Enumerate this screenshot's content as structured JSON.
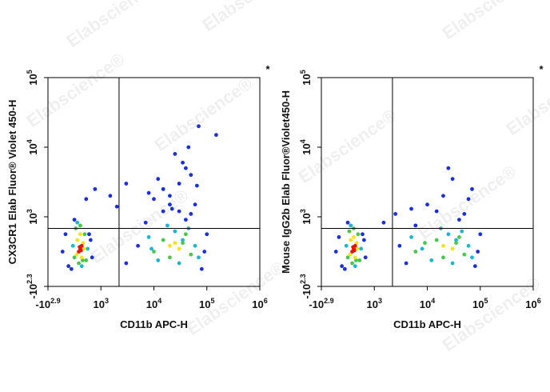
{
  "watermark": "Elabscience®",
  "chart_data": [
    {
      "type": "scatter",
      "annotation": "*",
      "xlabel": "CD11b APC-H",
      "ylabel": "CX3CR1 Elab Fluor® Violet 450-H",
      "xlim": [
        -794.3,
        1000000
      ],
      "ylim": [
        -199.5,
        100000
      ],
      "xticks": [
        {
          "value": -794.3,
          "label": "-10",
          "sup": "2.9"
        },
        {
          "value": 1000,
          "label": "10",
          "sup": "3"
        },
        {
          "value": 10000,
          "label": "10",
          "sup": "4"
        },
        {
          "value": 100000,
          "label": "10",
          "sup": "5"
        },
        {
          "value": 1000000,
          "label": "10",
          "sup": "6"
        }
      ],
      "yticks": [
        {
          "value": -199.5,
          "label": "-10",
          "sup": "2.3"
        },
        {
          "value": 1000,
          "label": "10",
          "sup": "3"
        },
        {
          "value": 10000,
          "label": "10",
          "sup": "4"
        },
        {
          "value": 100000,
          "label": "10",
          "sup": "5"
        }
      ],
      "gate_x": 2200,
      "gate_y": 800,
      "series": [
        {
          "color": "#1a2fe0",
          "x": [
            -300,
            -100,
            700,
            600,
            0,
            100,
            650,
            -200,
            5000,
            90000,
            3000,
            100000,
            7000,
            80000,
            15000,
            40000,
            50000,
            20000,
            30000,
            40000,
            25000,
            50000,
            15000,
            35000,
            60000,
            10000,
            45000,
            30000,
            20000,
            3000,
            1500,
            2000,
            800,
            500,
            70000,
            150000,
            12000,
            8000,
            22000,
            65000
          ],
          "values": [
            400,
            150,
            300,
            700,
            100,
            950,
            600,
            700,
            500,
            400,
            200,
            700,
            900,
            100,
            1200,
            950,
            1100,
            2000,
            3000,
            5000,
            8000,
            4000,
            2500,
            6000,
            1500,
            1800,
            10000,
            1200,
            1500,
            3000,
            2000,
            1400,
            2500,
            1800,
            20000,
            15000,
            3500,
            2200,
            1300,
            2800
          ]
        },
        {
          "color": "#19b6d6",
          "x": [
            8000,
            60000,
            12000,
            45000,
            25000,
            70000,
            18000,
            30000,
            50,
            550,
            200,
            350,
            9000,
            35000
          ],
          "values": [
            650,
            500,
            250,
            800,
            750,
            300,
            850,
            200,
            500,
            450,
            900,
            150,
            450,
            600
          ]
        },
        {
          "color": "#48c84a",
          "x": [
            100,
            450,
            500,
            150,
            250,
            380,
            300,
            10000,
            15000,
            40000,
            50000,
            20000,
            35000
          ],
          "values": [
            300,
            700,
            250,
            800,
            200,
            250,
            850,
            400,
            600,
            700,
            350,
            300,
            550
          ]
        },
        {
          "color": "#f5e21b",
          "x": [
            200,
            400,
            350,
            180,
            300,
            420,
            20000,
            30000,
            25000
          ],
          "values": [
            600,
            550,
            300,
            350,
            700,
            450,
            500,
            450,
            550
          ]
        },
        {
          "color": "#e8120c",
          "x": [
            300,
            350,
            250,
            320,
            280
          ],
          "values": [
            450,
            500,
            400,
            420,
            480
          ]
        }
      ]
    },
    {
      "type": "scatter",
      "annotation": "*",
      "xlabel": "CD11b APC-H",
      "ylabel": "Mouse IgG2b Elab Fluor®Violet450-H",
      "xlim": [
        -794.3,
        1000000
      ],
      "ylim": [
        -199.5,
        100000
      ],
      "xticks": [
        {
          "value": -794.3,
          "label": "-10",
          "sup": "2.9"
        },
        {
          "value": 1000,
          "label": "10",
          "sup": "3"
        },
        {
          "value": 10000,
          "label": "10",
          "sup": "4"
        },
        {
          "value": 100000,
          "label": "10",
          "sup": "5"
        },
        {
          "value": 1000000,
          "label": "10",
          "sup": "6"
        }
      ],
      "yticks": [
        {
          "value": -199.5,
          "label": "-10",
          "sup": "2.3"
        },
        {
          "value": 1000,
          "label": "10",
          "sup": "3"
        },
        {
          "value": 10000,
          "label": "10",
          "sup": "4"
        },
        {
          "value": 100000,
          "label": "10",
          "sup": "5"
        }
      ],
      "gate_x": 2200,
      "gate_y": 800,
      "series": [
        {
          "color": "#1a2fe0",
          "x": [
            -300,
            -100,
            700,
            600,
            0,
            100,
            650,
            -200,
            3000,
            90000,
            4000,
            100000,
            6000,
            80000,
            15000,
            40000,
            50000,
            20000,
            30000,
            10000,
            60000,
            5000,
            25000,
            2500,
            1500,
            70000
          ],
          "values": [
            400,
            150,
            300,
            700,
            100,
            900,
            600,
            650,
            500,
            400,
            200,
            700,
            850,
            150,
            1200,
            950,
            1100,
            2000,
            3500,
            1500,
            1800,
            1300,
            5000,
            1100,
            900,
            2500
          ]
        },
        {
          "color": "#19b6d6",
          "x": [
            5000,
            60000,
            12000,
            45000,
            25000,
            70000,
            18000,
            30000,
            50,
            550,
            200,
            350,
            8000,
            35000
          ],
          "values": [
            650,
            500,
            250,
            750,
            700,
            300,
            800,
            200,
            500,
            450,
            850,
            150,
            450,
            600
          ]
        },
        {
          "color": "#48c84a",
          "x": [
            100,
            450,
            500,
            150,
            250,
            380,
            300,
            6000,
            15000,
            40000,
            50000,
            20000,
            35000,
            9000
          ],
          "values": [
            300,
            700,
            250,
            750,
            200,
            250,
            800,
            400,
            600,
            650,
            350,
            300,
            550,
            550
          ]
        },
        {
          "color": "#f5e21b",
          "x": [
            200,
            400,
            350,
            180,
            300,
            420,
            20000,
            30000
          ],
          "values": [
            600,
            550,
            300,
            350,
            650,
            450,
            500,
            450
          ]
        },
        {
          "color": "#e8120c",
          "x": [
            300,
            350,
            250,
            320,
            280
          ],
          "values": [
            450,
            500,
            400,
            420,
            480
          ]
        }
      ]
    }
  ]
}
